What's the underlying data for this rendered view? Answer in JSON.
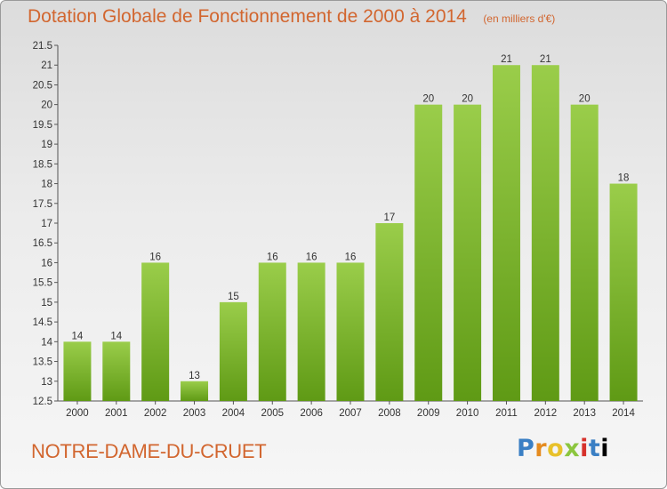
{
  "header": {
    "title": "Dotation Globale de Fonctionnement de 2000 à 2014",
    "unit": "(en milliers d'€)"
  },
  "footer": {
    "commune": "NOTRE-DAME-DU-CRUET",
    "brand": "Proxiti"
  },
  "colors": {
    "bar_top": "#9acd4a",
    "bar_bottom": "#5f9a15",
    "title": "#d2662f"
  },
  "chart_data": {
    "type": "bar",
    "title": "Dotation Globale de Fonctionnement de 2000 à 2014",
    "xlabel": "",
    "ylabel": "",
    "ylim": [
      12.5,
      21.5
    ],
    "yticks": [
      12.5,
      13,
      13.5,
      14,
      14.5,
      15,
      15.5,
      16,
      16.5,
      17,
      17.5,
      18,
      18.5,
      19,
      19.5,
      20,
      20.5,
      21,
      21.5
    ],
    "grid": false,
    "categories": [
      "2000",
      "2001",
      "2002",
      "2003",
      "2004",
      "2005",
      "2006",
      "2007",
      "2008",
      "2009",
      "2010",
      "2011",
      "2012",
      "2013",
      "2014"
    ],
    "values": [
      14,
      14,
      16,
      13,
      15,
      16,
      16,
      16,
      17,
      20,
      20,
      21,
      21,
      20,
      18
    ],
    "value_labels": [
      "14",
      "14",
      "16",
      "13",
      "15",
      "16",
      "16",
      "16",
      "17",
      "20",
      "20",
      "21",
      "21",
      "20",
      "18"
    ]
  }
}
